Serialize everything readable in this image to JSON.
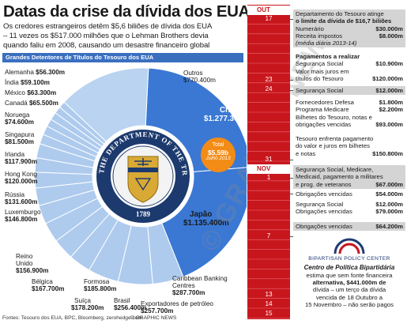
{
  "title": "Datas da crise da dívida dos EUA",
  "subtitle_lines": [
    "Os credores estrangeiros detêm $5,6 biliões de dívida dos EUA",
    "– 11 vezes os $517.000 milhões que o Lehman Brothers devia",
    "quando faliu em 2008, causando um desastre financeiro global"
  ],
  "chart_header": "Grandes Detentores de Títulos do Tesouro dos EUA",
  "chart_data": {
    "type": "pie",
    "title": "Grandes Detentores de Títulos do Tesouro dos EUA",
    "unit": "$m",
    "total": {
      "label": "Total",
      "value": "$5,59b",
      "note": "Julho 2013"
    },
    "slices": [
      {
        "name": "China",
        "value": 1277300,
        "label": "$1.277.300m"
      },
      {
        "name": "Japão",
        "value": 1135400,
        "label": "$1.135.400m"
      },
      {
        "name": "Exportadores de petróleo",
        "value": 257700,
        "label": "$257.700m"
      },
      {
        "name": "Caribbean Banking Centres",
        "value": 287700,
        "label": "$287.700m"
      },
      {
        "name": "Brasil",
        "value": 256400,
        "label": "$256.400m"
      },
      {
        "name": "Formosa",
        "value": 185800,
        "label": "$185.800m"
      },
      {
        "name": "Suíça",
        "value": 178200,
        "label": "$178.200m"
      },
      {
        "name": "Bélgica",
        "value": 167700,
        "label": "$167.700m"
      },
      {
        "name": "Reino Unido",
        "value": 156900,
        "label": "$156.900m"
      },
      {
        "name": "Luxemburgo",
        "value": 146800,
        "label": "$146.800m"
      },
      {
        "name": "Rússia",
        "value": 131600,
        "label": "$131.600m"
      },
      {
        "name": "Hong Kong",
        "value": 120000,
        "label": "$120.000m"
      },
      {
        "name": "Irlanda",
        "value": 117900,
        "label": "$117.900m"
      },
      {
        "name": "Singapura",
        "value": 81500,
        "label": "$81.500m"
      },
      {
        "name": "Noruega",
        "value": 74600,
        "label": "$74.600m"
      },
      {
        "name": "Canadá",
        "value": 65500,
        "label": "$65.500m"
      },
      {
        "name": "México",
        "value": 63300,
        "label": "$63.300m"
      },
      {
        "name": "Índia",
        "value": 59100,
        "label": "$59.100m"
      },
      {
        "name": "Alemanha",
        "value": 56300,
        "label": "$56.300m"
      },
      {
        "name": "Outros",
        "value": 770400,
        "label": "$770.400m"
      }
    ],
    "colors": {
      "china": "#3a78d4",
      "japan": "#3a78d4",
      "others": "#b9d3f1",
      "small": "#aecbee",
      "line": "#ffffff"
    }
  },
  "seal": {
    "ring_text": "THE DEPARTMENT OF THE TREASURY",
    "year": "1789"
  },
  "watermark": "© GRAPHIC NEWS",
  "timeline": {
    "months": {
      "oct": "OUT",
      "nov": "NOV"
    },
    "days": [
      "17",
      "23",
      "24",
      "31",
      "1",
      "7",
      "13",
      "14",
      "15"
    ],
    "events": [
      {
        "lines": [
          {
            "text": "Departamento do Tesouro atinge o limite da dívida de",
            "amount": ""
          },
          {
            "text": "de $16,7 biliões",
            "amount": ""
          }
        ],
        "raw": [
          "Departamento do Tesouro atinge",
          "o limite da dívida de $16,7 biliões"
        ],
        "rows": [
          {
            "t": "Numerário",
            "a": "$30.000m"
          },
          {
            "t": "Receita impostos",
            "a": "$8.000m"
          }
        ],
        "note": "(média diária 2013-14)"
      },
      {
        "head": "Pagamentos a realizar",
        "rows": [
          {
            "t": "Segurança Social",
            "a": "$10.900m"
          },
          {
            "t": "Valor mais juros em",
            "a": ""
          },
          {
            "t": "títulos do Tesouro",
            "a": "$120.000m"
          }
        ]
      },
      {
        "rows": [
          {
            "t": "Segurança Social",
            "a": "$12.000m"
          }
        ]
      },
      {
        "rows": [
          {
            "t": "Fornecedores Defesa",
            "a": "$1.800m"
          },
          {
            "t": "Programa Medicare",
            "a": "$2.200m"
          },
          {
            "t": "Bilhetes do Tesouro, notas e",
            "a": ""
          },
          {
            "t": "obrigações vencidas",
            "a": "$93.000m"
          }
        ]
      },
      {
        "rows": [
          {
            "t": "Tesouro enfrenta pagamento",
            "a": ""
          },
          {
            "t": "do valor e juros em bilhetes",
            "a": ""
          },
          {
            "t": "e notas",
            "a": "$150.800m"
          }
        ]
      },
      {
        "rows": [
          {
            "t": "Segurança Social, Medicare,",
            "a": ""
          },
          {
            "t": "Medicaid, pagamento a militares",
            "a": ""
          },
          {
            "t": "e prog. de veteranos",
            "a": "$67.000m"
          }
        ]
      },
      {
        "rows": [
          {
            "t": "Obrigações vencidas",
            "a": "$54.000m"
          }
        ]
      },
      {
        "rows": [
          {
            "t": "Segurança Social",
            "a": "$12.000m"
          },
          {
            "t": "Obrigações vencidas",
            "a": "$79.000m"
          }
        ]
      },
      {
        "rows": [
          {
            "t": "Obrigações vencidas",
            "a": "$64.200m"
          }
        ]
      }
    ]
  },
  "bpc": {
    "name": "BIPARTISAN POLICY CENTER",
    "title": "Centro de Política Bipartidária",
    "body_lines": [
      "estima que sem fonte financeira",
      "alternativa, $441.000m de",
      "dívida – um terço da dívida",
      "vencida de 18 Outubro a",
      "15 Novembro – não serão pagos"
    ]
  },
  "sources": "Fontes: Tesouro dos EUA, BPC, Bloomberg, zerohedge.com",
  "credit": "© GRAPHIC NEWS"
}
